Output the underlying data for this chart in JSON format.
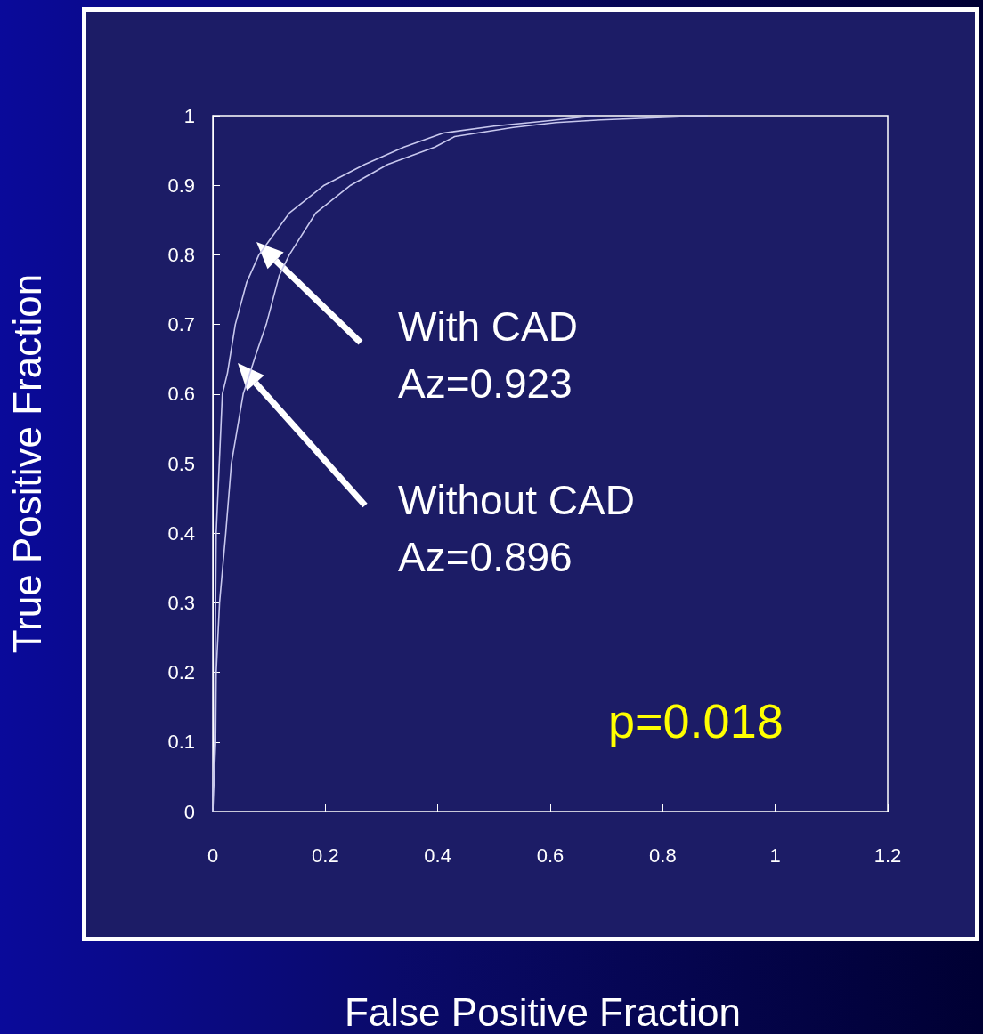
{
  "chart_data": {
    "type": "line",
    "ylabel": "True Positive Fraction",
    "xlim": [
      0,
      1.2
    ],
    "xticks": [
      0,
      0.2,
      0.4,
      0.6,
      0.8,
      1,
      1.2
    ],
    "ylim": [
      0,
      1
    ],
    "yticks": [
      0,
      0.1,
      0.2,
      0.3,
      0.4,
      0.5,
      0.6,
      0.7,
      0.8,
      0.9,
      1
    ],
    "grid": false,
    "marker": "none",
    "line_style": "solid",
    "series": [
      {
        "color": "#c8c8ee",
        "x": [
          0,
          0.003,
          0.006,
          0.017,
          0.026,
          0.04,
          0.06,
          0.082,
          0.1,
          0.136,
          0.198,
          0.27,
          0.34,
          0.41,
          0.5,
          0.6,
          0.68
        ],
        "values": [
          0.02,
          0.1,
          0.4,
          0.6,
          0.63,
          0.7,
          0.76,
          0.8,
          0.82,
          0.86,
          0.9,
          0.93,
          0.955,
          0.975,
          0.985,
          0.993,
          1
        ]
      },
      {
        "color": "#c8c8ee",
        "x": [
          0,
          0.005,
          0.006,
          0.012,
          0.023,
          0.033,
          0.054,
          0.076,
          0.095,
          0.118,
          0.136,
          0.183,
          0.245,
          0.311,
          0.395,
          0.43,
          0.534,
          0.61,
          0.69,
          0.88
        ],
        "values": [
          0,
          0.1,
          0.2,
          0.3,
          0.4,
          0.5,
          0.6,
          0.655,
          0.7,
          0.77,
          0.8,
          0.86,
          0.9,
          0.93,
          0.955,
          0.97,
          0.983,
          0.99,
          0.994,
          1
        ]
      }
    ],
    "annotations": [
      "With CAD\nAz=0.923",
      "Without CAD\nAz=0.896",
      "p=0.018",
      "False Positive Fraction"
    ]
  }
}
